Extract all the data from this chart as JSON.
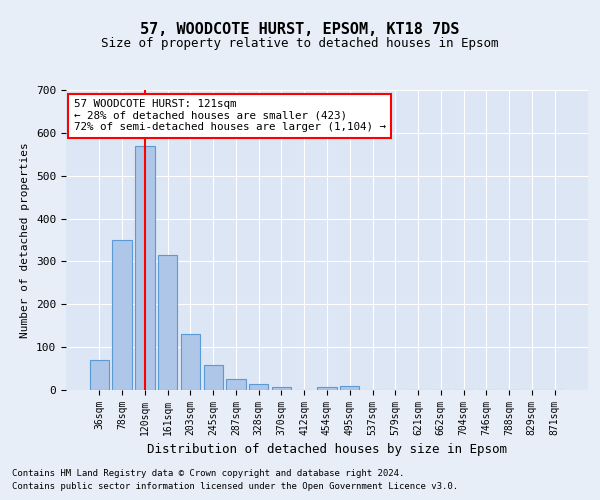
{
  "title": "57, WOODCOTE HURST, EPSOM, KT18 7DS",
  "subtitle": "Size of property relative to detached houses in Epsom",
  "xlabel": "Distribution of detached houses by size in Epsom",
  "ylabel": "Number of detached properties",
  "bar_labels": [
    "36sqm",
    "78sqm",
    "120sqm",
    "161sqm",
    "203sqm",
    "245sqm",
    "287sqm",
    "328sqm",
    "370sqm",
    "412sqm",
    "454sqm",
    "495sqm",
    "537sqm",
    "579sqm",
    "621sqm",
    "662sqm",
    "704sqm",
    "746sqm",
    "788sqm",
    "829sqm",
    "871sqm"
  ],
  "bar_values": [
    70,
    350,
    570,
    315,
    130,
    58,
    25,
    15,
    8,
    0,
    8,
    10,
    0,
    0,
    0,
    0,
    0,
    0,
    0,
    0,
    0
  ],
  "bar_color": "#aec6e8",
  "bar_edge_color": "#5b9bd5",
  "annotation_box_text": "57 WOODCOTE HURST: 121sqm\n← 28% of detached houses are smaller (423)\n72% of semi-detached houses are larger (1,104) →",
  "ylim": [
    0,
    700
  ],
  "yticks": [
    0,
    100,
    200,
    300,
    400,
    500,
    600,
    700
  ],
  "footer_line1": "Contains HM Land Registry data © Crown copyright and database right 2024.",
  "footer_line2": "Contains public sector information licensed under the Open Government Licence v3.0.",
  "background_color": "#e8eef7",
  "plot_bg_color": "#dce6f5",
  "red_line_x": 2.0
}
